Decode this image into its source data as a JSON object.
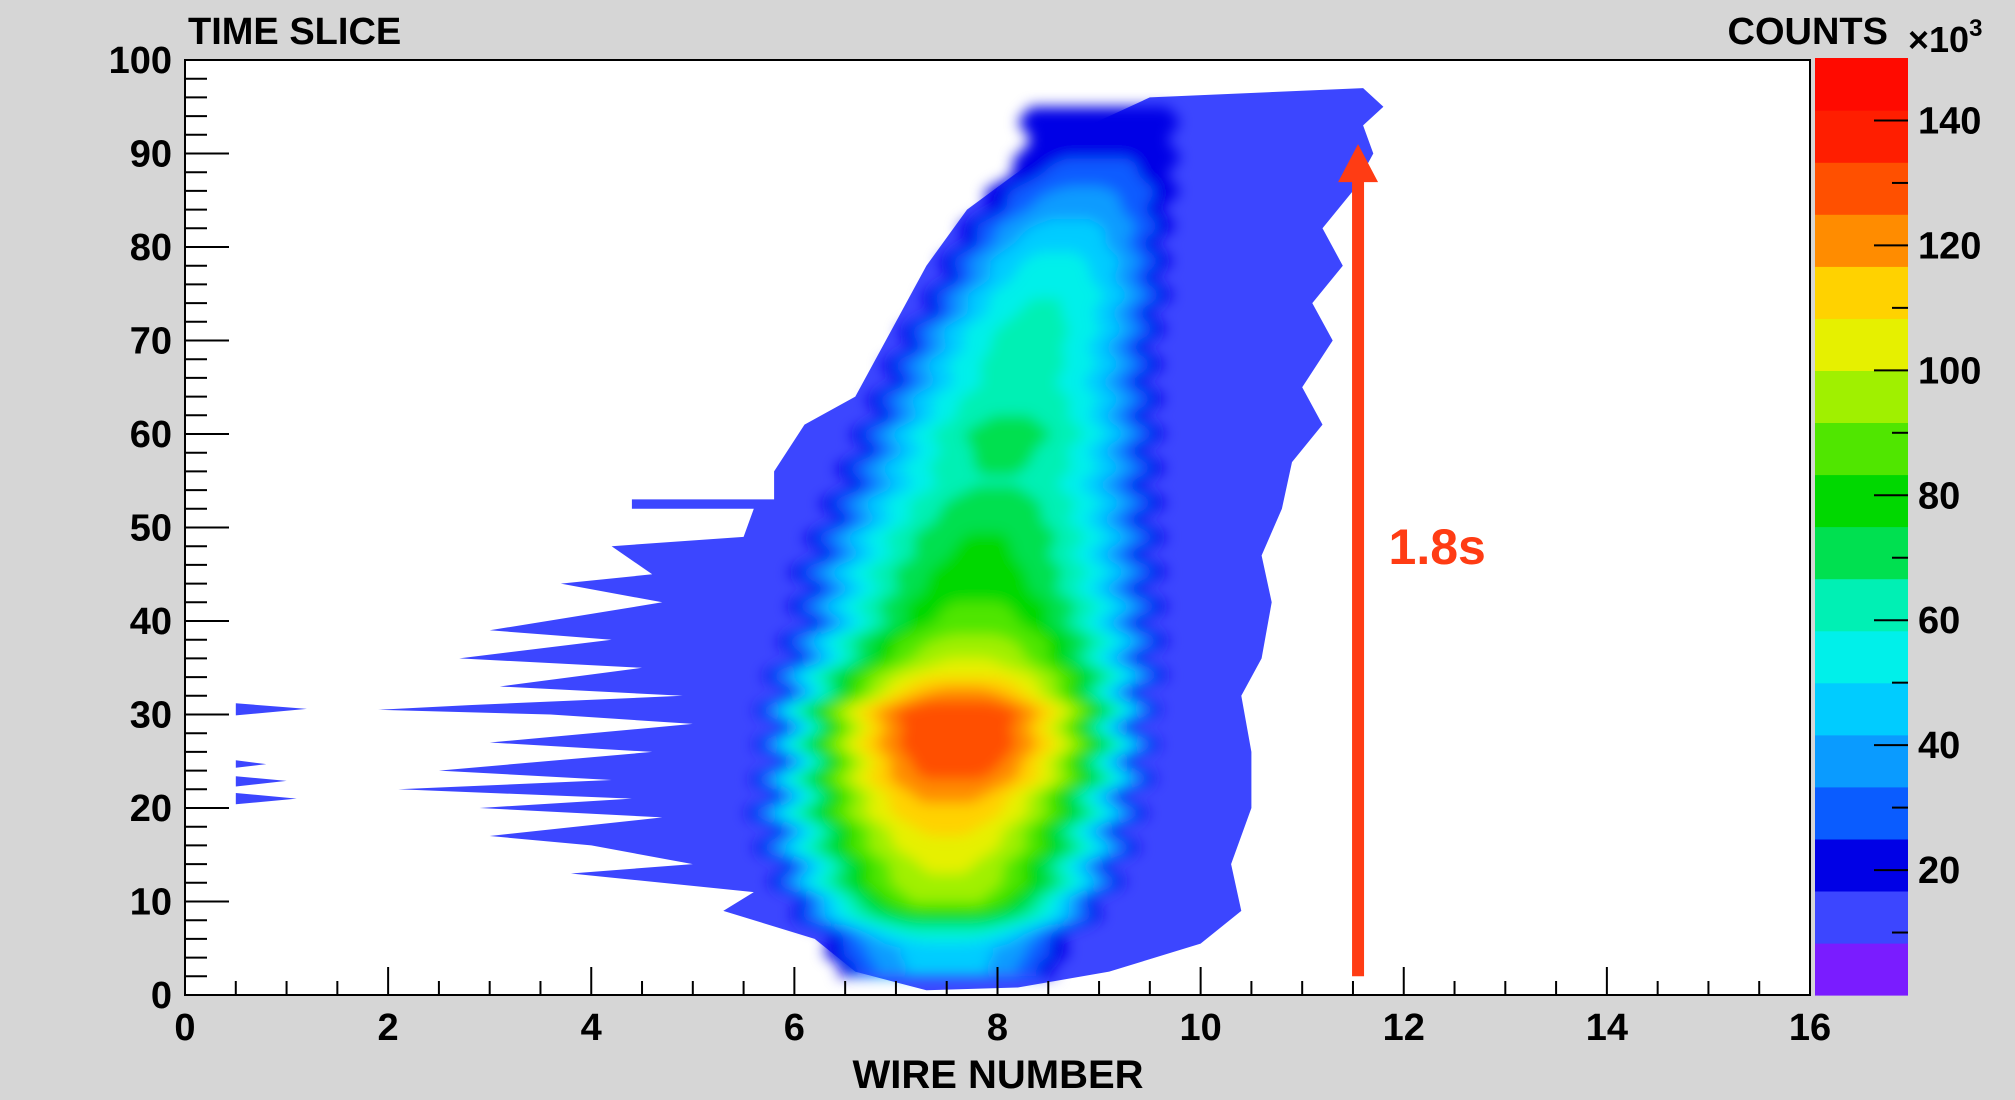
{
  "chart_data": {
    "type": "heatmap",
    "title": "",
    "xlabel": "WIRE NUMBER",
    "ylabel": "TIME SLICE",
    "zlabel": "COUNTS",
    "z_multiplier_base": "×10",
    "z_multiplier_exp": "3",
    "xlim": [
      0,
      16
    ],
    "ylim": [
      0,
      100
    ],
    "zlim": [
      0,
      150
    ],
    "x_ticks": [
      0,
      2,
      4,
      6,
      8,
      10,
      12,
      14,
      16
    ],
    "y_ticks": [
      0,
      10,
      20,
      30,
      40,
      50,
      60,
      70,
      80,
      90,
      100
    ],
    "z_ticks": [
      20,
      40,
      60,
      80,
      100,
      120,
      140
    ],
    "grid": false,
    "contour_levels": [
      5,
      15,
      25,
      35,
      45,
      55,
      65,
      75,
      85,
      95,
      105,
      115,
      125,
      135
    ],
    "level_colors": [
      "#3c46ff",
      "#0000e6",
      "#0a5cff",
      "#0a9bff",
      "#00ccff",
      "#00f0ea",
      "#00f0b4",
      "#00e050",
      "#00d800",
      "#50e600",
      "#a0f000",
      "#e6f000",
      "#ffd200",
      "#ff8c00",
      "#ff5000",
      "#ff1e00"
    ],
    "colorbar_colors": [
      "#7a1cff",
      "#3c46ff",
      "#0000e6",
      "#0a5cff",
      "#0a9bff",
      "#00ccff",
      "#00f0ea",
      "#00f0b4",
      "#00e050",
      "#00d800",
      "#50e600",
      "#a0f000",
      "#e6f000",
      "#ffd200",
      "#ff8c00",
      "#ff5000",
      "#ff1e00",
      "#ff0a00"
    ],
    "profile_x": [
      5,
      10,
      15,
      20,
      25,
      30,
      35,
      40,
      45,
      50,
      55,
      60,
      65,
      70,
      75,
      80,
      85,
      90
    ],
    "profile_center": [
      7.5,
      7.5,
      7.5,
      7.5,
      7.6,
      7.6,
      7.7,
      7.8,
      7.8,
      7.9,
      8.0,
      8.1,
      8.2,
      8.3,
      8.5,
      8.6,
      8.8,
      9.0
    ],
    "profile_width": [
      1.2,
      1.6,
      1.8,
      1.9,
      1.9,
      1.9,
      1.9,
      1.8,
      1.8,
      1.7,
      1.6,
      1.5,
      1.4,
      1.3,
      1.2,
      1.1,
      1.0,
      0.9
    ],
    "profile_peak": [
      40,
      100,
      110,
      125,
      145,
      150,
      110,
      90,
      80,
      75,
      65,
      70,
      60,
      60,
      55,
      45,
      30,
      15
    ],
    "outer_boundary": [
      [
        7.3,
        0.5
      ],
      [
        8.2,
        0.8
      ],
      [
        9.1,
        2.5
      ],
      [
        10.0,
        5.5
      ],
      [
        10.4,
        9
      ],
      [
        10.3,
        14
      ],
      [
        10.5,
        20
      ],
      [
        10.5,
        26
      ],
      [
        10.4,
        32
      ],
      [
        10.6,
        36
      ],
      [
        10.7,
        42
      ],
      [
        10.6,
        47
      ],
      [
        10.8,
        52
      ],
      [
        10.9,
        57
      ],
      [
        11.2,
        61
      ],
      [
        11.0,
        65
      ],
      [
        11.3,
        70
      ],
      [
        11.1,
        74
      ],
      [
        11.4,
        78
      ],
      [
        11.2,
        82
      ],
      [
        11.5,
        86
      ],
      [
        11.7,
        90
      ],
      [
        11.6,
        93
      ],
      [
        11.8,
        95
      ],
      [
        11.6,
        97
      ],
      [
        9.5,
        96
      ],
      [
        8.7,
        92
      ],
      [
        8.2,
        88
      ],
      [
        7.7,
        84
      ],
      [
        7.3,
        78
      ],
      [
        6.9,
        70
      ],
      [
        6.6,
        64
      ],
      [
        6.1,
        61
      ],
      [
        5.8,
        56
      ],
      [
        5.8,
        53
      ],
      [
        4.4,
        53
      ],
      [
        4.4,
        52
      ],
      [
        5.6,
        52
      ],
      [
        5.5,
        49
      ],
      [
        4.2,
        48
      ],
      [
        4.6,
        45
      ],
      [
        3.7,
        44
      ],
      [
        4.7,
        42
      ],
      [
        3.0,
        39
      ],
      [
        4.2,
        38
      ],
      [
        2.7,
        36
      ],
      [
        4.5,
        35
      ],
      [
        3.1,
        33
      ],
      [
        4.9,
        32
      ],
      [
        2.8,
        31
      ],
      [
        1.9,
        30.5
      ],
      [
        3.6,
        30
      ],
      [
        5.0,
        29
      ],
      [
        3.0,
        27
      ],
      [
        4.6,
        26
      ],
      [
        2.5,
        24
      ],
      [
        4.2,
        23
      ],
      [
        2.1,
        22
      ],
      [
        4.4,
        21
      ],
      [
        2.9,
        20
      ],
      [
        4.7,
        19
      ],
      [
        3.0,
        17
      ],
      [
        4.0,
        16
      ],
      [
        5.0,
        14
      ],
      [
        3.8,
        13
      ],
      [
        5.6,
        11
      ],
      [
        5.3,
        9
      ],
      [
        6.2,
        6
      ],
      [
        6.6,
        2.5
      ]
    ],
    "specks": [
      [
        [
          0.5,
          31.2
        ],
        [
          1.2,
          30.6
        ],
        [
          0.5,
          29.9
        ]
      ],
      [
        [
          0.5,
          25.1
        ],
        [
          0.8,
          24.7
        ],
        [
          0.5,
          24.3
        ]
      ],
      [
        [
          0.5,
          23.4
        ],
        [
          1.0,
          22.9
        ],
        [
          0.5,
          22.3
        ]
      ],
      [
        [
          0.5,
          21.6
        ],
        [
          1.1,
          21.0
        ],
        [
          0.5,
          20.4
        ]
      ]
    ],
    "annotation": {
      "text": "1.8s",
      "color": "#ff3c14",
      "arrow_x": 11.55,
      "arrow_y_start": 2,
      "arrow_y_end": 91,
      "text_x": 11.85,
      "text_y": 48
    }
  }
}
